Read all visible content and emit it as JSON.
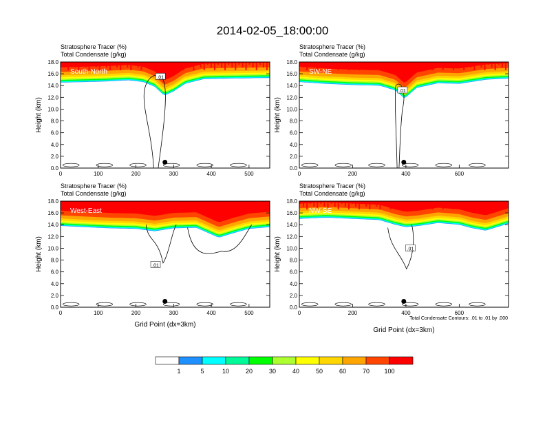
{
  "title": "2014-02-05_18:00:00",
  "colors": {
    "levels": [
      "#ffffff",
      "#1e90ff",
      "#00ffff",
      "#00fa9a",
      "#00ff00",
      "#adff2f",
      "#ffff00",
      "#ffd700",
      "#ffa500",
      "#ff4500",
      "#ff0000"
    ],
    "contour": "#000000",
    "marker": "#000000"
  },
  "colorbar": {
    "labels": [
      "1",
      "5",
      "10",
      "20",
      "30",
      "40",
      "50",
      "60",
      "70",
      "100"
    ]
  },
  "contour_note": "Total Condensate Contours: .01 to .01 by .000",
  "contour_label": ".01",
  "chart_data": [
    {
      "type": "heatmap",
      "name": "South-North",
      "left_title_1": "Stratosphere Tracer   (%)",
      "left_title_2": "Total Condensate   (g/kg)",
      "xlabel": "",
      "ylabel": "Height (km)",
      "xlim": [
        0,
        555
      ],
      "ylim": [
        0,
        18
      ],
      "xticks": [
        0,
        100,
        200,
        300,
        400,
        500
      ],
      "xtick_labels": [
        "0",
        "100",
        "200",
        "300",
        "400",
        "500"
      ],
      "yticks": [
        0,
        2,
        4,
        6,
        8,
        10,
        12,
        14,
        16,
        18
      ],
      "ytick_labels": [
        "0.0",
        "2.0",
        "4.0",
        "6.0",
        "8.0",
        "10.0",
        "12.0",
        "14.0",
        "16.0",
        "18.0"
      ],
      "marker_x": 277,
      "tracer_profile": [
        {
          "x": 0,
          "base": 14.5
        },
        {
          "x": 60,
          "base": 14.6
        },
        {
          "x": 120,
          "base": 14.7
        },
        {
          "x": 180,
          "base": 14.9
        },
        {
          "x": 220,
          "base": 14.6
        },
        {
          "x": 250,
          "base": 13.8
        },
        {
          "x": 275,
          "base": 12.3
        },
        {
          "x": 300,
          "base": 13.0
        },
        {
          "x": 330,
          "base": 14.3
        },
        {
          "x": 380,
          "base": 15.1
        },
        {
          "x": 450,
          "base": 15.2
        },
        {
          "x": 555,
          "base": 15.3
        }
      ]
    },
    {
      "type": "heatmap",
      "name": "SW-NE",
      "left_title_1": "Stratosphere Tracer   (%)",
      "left_title_2": "Total Condensate   (g/kg)",
      "xlabel": "",
      "ylabel": "Height (km)",
      "xlim": [
        0,
        785
      ],
      "ylim": [
        0,
        18
      ],
      "xticks": [
        0,
        200,
        400,
        600
      ],
      "xtick_labels": [
        "0",
        "200",
        "400",
        "600"
      ],
      "yticks": [
        0,
        2,
        4,
        6,
        8,
        10,
        12,
        14,
        16,
        18
      ],
      "ytick_labels": [
        "0.0",
        "2.0",
        "4.0",
        "6.0",
        "8.0",
        "10.0",
        "12.0",
        "14.0",
        "16.0",
        "18.0"
      ],
      "marker_x": 392,
      "tracer_profile": [
        {
          "x": 0,
          "base": 14.6
        },
        {
          "x": 100,
          "base": 14.3
        },
        {
          "x": 200,
          "base": 14.1
        },
        {
          "x": 300,
          "base": 14.0
        },
        {
          "x": 360,
          "base": 13.2
        },
        {
          "x": 395,
          "base": 11.8
        },
        {
          "x": 440,
          "base": 13.6
        },
        {
          "x": 520,
          "base": 14.4
        },
        {
          "x": 600,
          "base": 14.3
        },
        {
          "x": 700,
          "base": 15.0
        },
        {
          "x": 785,
          "base": 15.2
        }
      ]
    },
    {
      "type": "heatmap",
      "name": "West-East",
      "left_title_1": "Stratosphere Tracer   (%)",
      "left_title_2": "Total Condensate   (g/kg)",
      "xlabel": "Grid Point (dx=3km)",
      "ylabel": "Height (km)",
      "xlim": [
        0,
        555
      ],
      "ylim": [
        0,
        18
      ],
      "xticks": [
        0,
        100,
        200,
        300,
        400,
        500
      ],
      "xtick_labels": [
        "0",
        "100",
        "200",
        "300",
        "400",
        "500"
      ],
      "yticks": [
        0,
        2,
        4,
        6,
        8,
        10,
        12,
        14,
        16,
        18
      ],
      "ytick_labels": [
        "0.0",
        "2.0",
        "4.0",
        "6.0",
        "8.0",
        "10.0",
        "12.0",
        "14.0",
        "16.0",
        "18.0"
      ],
      "marker_x": 277,
      "tracer_profile": [
        {
          "x": 0,
          "base": 13.8
        },
        {
          "x": 60,
          "base": 13.6
        },
        {
          "x": 130,
          "base": 13.4
        },
        {
          "x": 200,
          "base": 13.3
        },
        {
          "x": 250,
          "base": 12.9
        },
        {
          "x": 300,
          "base": 13.4
        },
        {
          "x": 360,
          "base": 13.5
        },
        {
          "x": 420,
          "base": 11.8
        },
        {
          "x": 460,
          "base": 12.6
        },
        {
          "x": 500,
          "base": 13.3
        },
        {
          "x": 555,
          "base": 13.6
        }
      ]
    },
    {
      "type": "heatmap",
      "name": "NW-SE",
      "left_title_1": "Stratosphere Tracer   (%)",
      "left_title_2": "Total Condensate   (g/kg)",
      "xlabel": "Grid Point (dx=3km)",
      "ylabel": "Height (km)",
      "xlim": [
        0,
        785
      ],
      "ylim": [
        0,
        18
      ],
      "xticks": [
        0,
        200,
        400,
        600
      ],
      "xtick_labels": [
        "0",
        "200",
        "400",
        "600"
      ],
      "yticks": [
        0,
        2,
        4,
        6,
        8,
        10,
        12,
        14,
        16,
        18
      ],
      "ytick_labels": [
        "0.0",
        "2.0",
        "4.0",
        "6.0",
        "8.0",
        "10.0",
        "12.0",
        "14.0",
        "16.0",
        "18.0"
      ],
      "marker_x": 392,
      "tracer_profile": [
        {
          "x": 0,
          "base": 15.0
        },
        {
          "x": 100,
          "base": 15.2
        },
        {
          "x": 200,
          "base": 15.0
        },
        {
          "x": 300,
          "base": 14.8
        },
        {
          "x": 360,
          "base": 14.0
        },
        {
          "x": 400,
          "base": 13.6
        },
        {
          "x": 450,
          "base": 13.8
        },
        {
          "x": 520,
          "base": 14.3
        },
        {
          "x": 600,
          "base": 14.0
        },
        {
          "x": 650,
          "base": 13.4
        },
        {
          "x": 700,
          "base": 13.0
        },
        {
          "x": 785,
          "base": 14.2
        }
      ]
    }
  ]
}
